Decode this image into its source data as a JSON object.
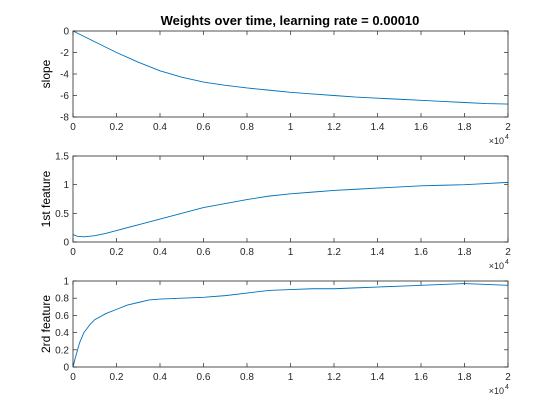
{
  "chart_data": [
    {
      "type": "line",
      "title": "Weights over time, learning rate = 0.00010",
      "xlabel": "",
      "ylabel": "slope",
      "xlim": [
        0,
        20000
      ],
      "ylim": [
        -8,
        0
      ],
      "xticks": [
        0,
        2000,
        4000,
        6000,
        8000,
        10000,
        12000,
        14000,
        16000,
        18000,
        20000
      ],
      "xtick_labels": [
        "0",
        "0.2",
        "0.4",
        "0.6",
        "0.8",
        "1",
        "1.2",
        "1.4",
        "1.6",
        "1.8",
        "2"
      ],
      "yticks": [
        -8,
        -6,
        -4,
        -2,
        0
      ],
      "ytick_labels": [
        "-8",
        "-6",
        "-4",
        "-2",
        "0"
      ],
      "x_exponent": {
        "base": "×10",
        "power": "4"
      },
      "grid": false,
      "series": [
        {
          "color": "#0072BD",
          "x": [
            0,
            500,
            1000,
            2000,
            3000,
            4000,
            5000,
            6000,
            7000,
            8000,
            9000,
            10000,
            11000,
            12000,
            13000,
            14000,
            15000,
            16000,
            17000,
            18000,
            19000,
            20000
          ],
          "y": [
            0,
            -0.5,
            -1.0,
            -2.0,
            -2.9,
            -3.7,
            -4.3,
            -4.75,
            -5.05,
            -5.3,
            -5.5,
            -5.7,
            -5.85,
            -6.0,
            -6.15,
            -6.25,
            -6.35,
            -6.45,
            -6.55,
            -6.65,
            -6.75,
            -6.8
          ]
        }
      ]
    },
    {
      "type": "line",
      "title": "",
      "xlabel": "",
      "ylabel": "1st feature",
      "xlim": [
        0,
        20000
      ],
      "ylim": [
        0,
        1.5
      ],
      "xticks": [
        0,
        2000,
        4000,
        6000,
        8000,
        10000,
        12000,
        14000,
        16000,
        18000,
        20000
      ],
      "xtick_labels": [
        "0",
        "0.2",
        "0.4",
        "0.6",
        "0.8",
        "1",
        "1.2",
        "1.4",
        "1.6",
        "1.8",
        "2"
      ],
      "yticks": [
        0,
        0.5,
        1,
        1.5
      ],
      "ytick_labels": [
        "0",
        "0.5",
        "1",
        "1.5"
      ],
      "x_exponent": {
        "base": "×10",
        "power": "4"
      },
      "grid": false,
      "series": [
        {
          "color": "#0072BD",
          "x": [
            0,
            200,
            500,
            1000,
            1500,
            2000,
            3000,
            4000,
            5000,
            6000,
            7000,
            8000,
            9000,
            10000,
            11000,
            12000,
            13000,
            14000,
            15000,
            16000,
            17000,
            18000,
            19000,
            20000
          ],
          "y": [
            0.13,
            0.1,
            0.09,
            0.11,
            0.15,
            0.2,
            0.3,
            0.4,
            0.5,
            0.6,
            0.67,
            0.74,
            0.8,
            0.84,
            0.87,
            0.9,
            0.92,
            0.94,
            0.96,
            0.98,
            0.99,
            1.0,
            1.02,
            1.04
          ]
        }
      ]
    },
    {
      "type": "line",
      "title": "",
      "xlabel": "",
      "ylabel": "2rd feature",
      "xlim": [
        0,
        20000
      ],
      "ylim": [
        0,
        1
      ],
      "xticks": [
        0,
        2000,
        4000,
        6000,
        8000,
        10000,
        12000,
        14000,
        16000,
        18000,
        20000
      ],
      "xtick_labels": [
        "0",
        "0.2",
        "0.4",
        "0.6",
        "0.8",
        "1",
        "1.2",
        "1.4",
        "1.6",
        "1.8",
        "2"
      ],
      "yticks": [
        0,
        0.2,
        0.4,
        0.6,
        0.8,
        1
      ],
      "ytick_labels": [
        "0",
        "0.2",
        "0.4",
        "0.6",
        "0.8",
        "1"
      ],
      "x_exponent": {
        "base": "×10",
        "power": "4"
      },
      "grid": false,
      "series": [
        {
          "color": "#0072BD",
          "x": [
            0,
            100,
            300,
            500,
            800,
            1000,
            1500,
            2000,
            2500,
            3000,
            3500,
            4000,
            5000,
            6000,
            7000,
            8000,
            9000,
            10000,
            11000,
            12000,
            13000,
            14000,
            15000,
            16000,
            17000,
            18000,
            19000,
            20000
          ],
          "y": [
            0,
            0.1,
            0.28,
            0.4,
            0.5,
            0.55,
            0.62,
            0.67,
            0.72,
            0.75,
            0.78,
            0.79,
            0.8,
            0.81,
            0.83,
            0.86,
            0.89,
            0.9,
            0.91,
            0.91,
            0.92,
            0.93,
            0.94,
            0.95,
            0.96,
            0.97,
            0.96,
            0.95
          ]
        }
      ]
    }
  ]
}
